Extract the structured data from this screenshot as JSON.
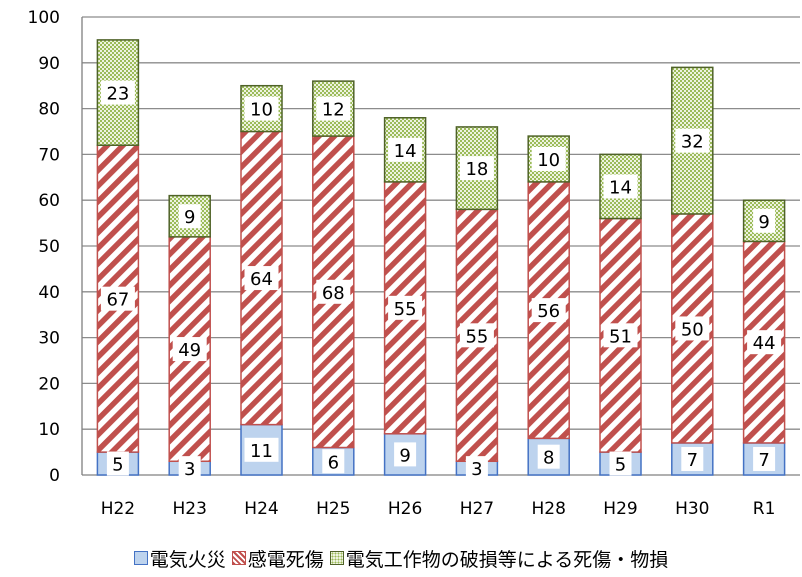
{
  "chart_data": {
    "type": "bar",
    "stacked": true,
    "categories": [
      "H22",
      "H23",
      "H24",
      "H25",
      "H26",
      "H27",
      "H28",
      "H29",
      "H30",
      "R1"
    ],
    "series": [
      {
        "name": "電気火災",
        "values": [
          5,
          3,
          11,
          6,
          9,
          3,
          8,
          5,
          7,
          7
        ],
        "color": "#bdd3ee",
        "edge": "#4472c4",
        "pattern": "solid"
      },
      {
        "name": "感電死傷",
        "values": [
          67,
          49,
          64,
          68,
          55,
          55,
          56,
          51,
          50,
          44
        ],
        "color": "#c0504d",
        "edge": "#c0504d",
        "pattern": "diagonal-stripes"
      },
      {
        "name": "電気工作物の破損等による死傷・物損",
        "values": [
          23,
          9,
          10,
          12,
          14,
          18,
          10,
          14,
          32,
          9
        ],
        "color": "#9bbb59",
        "edge": "#4f6228",
        "pattern": "dots"
      }
    ],
    "ylim": [
      0,
      100
    ],
    "yticks": [
      0,
      10,
      20,
      30,
      40,
      50,
      60,
      70,
      80,
      90,
      100
    ],
    "grid": true,
    "legend": "bottom",
    "legend_separator": "・"
  }
}
